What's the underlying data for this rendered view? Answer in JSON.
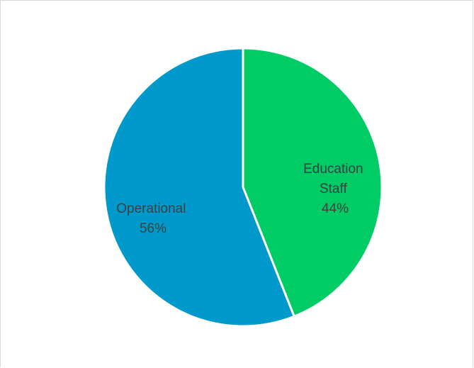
{
  "chart_data": {
    "type": "pie",
    "title": "",
    "legend": "none",
    "slices": [
      {
        "label_lines": [
          "Education",
          "Staff"
        ],
        "percent_label": "44%",
        "value": 44,
        "color": "#00cc66"
      },
      {
        "label_lines": [
          "Operational"
        ],
        "percent_label": "56%",
        "value": 56,
        "color": "#0099cc"
      }
    ]
  }
}
